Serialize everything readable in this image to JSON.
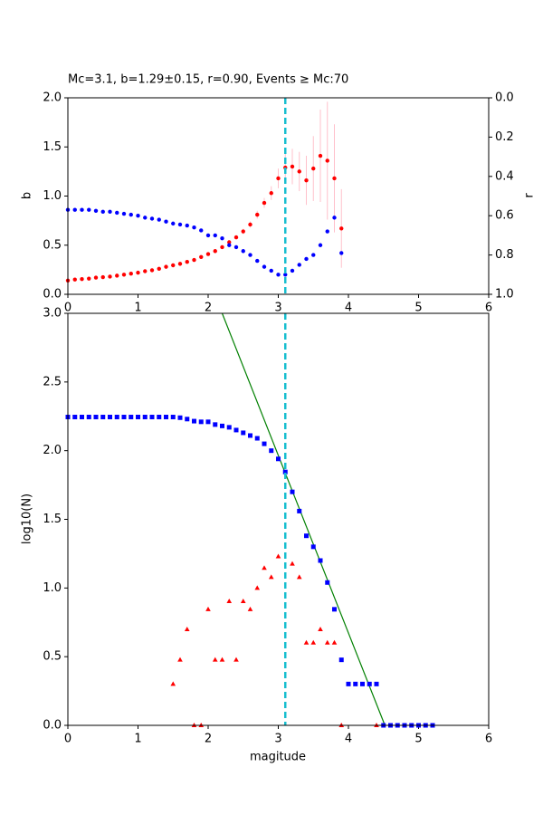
{
  "chart_data": [
    {
      "type": "scatter",
      "title": "Mc=3.1, b=1.29±0.15, r=0.90, Events ≥ Mc:70",
      "ylabel": "b",
      "y2label": "r",
      "xlim": [
        0,
        6
      ],
      "xticks": [
        0,
        1,
        2,
        3,
        4,
        5,
        6
      ],
      "ylim": [
        0,
        2
      ],
      "yticks": [
        {
          "value": 0,
          "label": "0.0"
        },
        0.5,
        {
          "value": 1,
          "label": "1.0"
        },
        1.5,
        {
          "value": 2,
          "label": "2.0"
        }
      ],
      "y2lim": [
        1,
        0
      ],
      "y2ticks": [
        {
          "value": 0,
          "label": "0.0"
        },
        0.2,
        0.4,
        0.6,
        0.8,
        {
          "value": 1,
          "label": "1.0"
        }
      ],
      "vline": {
        "x": 3.1,
        "color": "#17becf"
      },
      "x": [
        0.0,
        0.1,
        0.2,
        0.3,
        0.4,
        0.5,
        0.6,
        0.7,
        0.8,
        0.9,
        1.0,
        1.1,
        1.2,
        1.3,
        1.4,
        1.5,
        1.6,
        1.7,
        1.8,
        1.9,
        2.0,
        2.1,
        2.2,
        2.3,
        2.4,
        2.5,
        2.6,
        2.7,
        2.8,
        2.9,
        3.0,
        3.1,
        3.2,
        3.3,
        3.4,
        3.5,
        3.6,
        3.7,
        3.8,
        3.9
      ],
      "series": [
        {
          "color": "#ff0000",
          "marker": "circle",
          "error_color": "#ffc0cb",
          "values": [
            0.14,
            0.15,
            0.155,
            0.16,
            0.17,
            0.175,
            0.18,
            0.19,
            0.2,
            0.21,
            0.22,
            0.235,
            0.245,
            0.26,
            0.28,
            0.295,
            0.31,
            0.33,
            0.35,
            0.38,
            0.41,
            0.44,
            0.48,
            0.53,
            0.58,
            0.64,
            0.71,
            0.81,
            0.93,
            1.03,
            1.18,
            1.29,
            1.3,
            1.25,
            1.16,
            1.28,
            1.41,
            1.36,
            1.18,
            0.67
          ],
          "errors": [
            0.005,
            0.005,
            0.005,
            0.005,
            0.005,
            0.005,
            0.005,
            0.005,
            0.006,
            0.006,
            0.007,
            0.007,
            0.008,
            0.008,
            0.009,
            0.01,
            0.01,
            0.011,
            0.012,
            0.013,
            0.014,
            0.016,
            0.018,
            0.02,
            0.023,
            0.027,
            0.032,
            0.04,
            0.05,
            0.07,
            0.1,
            0.15,
            0.18,
            0.2,
            0.25,
            0.33,
            0.47,
            0.6,
            0.55,
            0.4
          ]
        },
        {
          "color": "#0000ff",
          "marker": "circle",
          "axis": "y2",
          "values": [
            0.57,
            0.57,
            0.57,
            0.57,
            0.575,
            0.58,
            0.58,
            0.585,
            0.59,
            0.595,
            0.6,
            0.61,
            0.615,
            0.62,
            0.63,
            0.64,
            0.645,
            0.65,
            0.66,
            0.675,
            0.7,
            0.7,
            0.715,
            0.75,
            0.76,
            0.78,
            0.8,
            0.83,
            0.86,
            0.88,
            0.9,
            0.9,
            0.88,
            0.85,
            0.82,
            0.8,
            0.75,
            0.68,
            0.61,
            0.79
          ]
        }
      ]
    },
    {
      "type": "scatter",
      "xlabel": "magitude",
      "ylabel": "log10(N)",
      "xlim": [
        0,
        6
      ],
      "xticks": [
        0,
        1,
        2,
        3,
        4,
        5,
        6
      ],
      "ylim": [
        0,
        3
      ],
      "yticks": [
        {
          "value": 0,
          "label": "0.0"
        },
        0.5,
        {
          "value": 1,
          "label": "1.0"
        },
        1.5,
        {
          "value": 2,
          "label": "2.0"
        },
        2.5,
        {
          "value": 3,
          "label": "3.0"
        }
      ],
      "vline": {
        "x": 3.1,
        "color": "#17becf"
      },
      "series": [
        {
          "color": "#0000ff",
          "marker": "square",
          "x": [
            0.0,
            0.1,
            0.2,
            0.3,
            0.4,
            0.5,
            0.6,
            0.7,
            0.8,
            0.9,
            1.0,
            1.1,
            1.2,
            1.3,
            1.4,
            1.5,
            1.6,
            1.7,
            1.8,
            1.9,
            2.0,
            2.1,
            2.2,
            2.3,
            2.4,
            2.5,
            2.6,
            2.7,
            2.8,
            2.9,
            3.0,
            3.1,
            3.2,
            3.3,
            3.4,
            3.5,
            3.6,
            3.7,
            3.8,
            3.9,
            4.0,
            4.1,
            4.2,
            4.3,
            4.4,
            4.5,
            4.6,
            4.7,
            4.8,
            4.9,
            5.0,
            5.1,
            5.2
          ],
          "values": [
            2.245,
            2.245,
            2.245,
            2.245,
            2.245,
            2.245,
            2.245,
            2.245,
            2.245,
            2.245,
            2.245,
            2.245,
            2.245,
            2.245,
            2.245,
            2.245,
            2.24,
            2.23,
            2.215,
            2.21,
            2.21,
            2.19,
            2.18,
            2.17,
            2.15,
            2.13,
            2.11,
            2.09,
            2.05,
            2.0,
            1.94,
            1.845,
            1.7,
            1.56,
            1.38,
            1.3,
            1.2,
            1.04,
            0.845,
            0.477,
            0.301,
            0.301,
            0.301,
            0.301,
            0.301,
            0,
            0,
            0,
            0,
            0,
            0,
            0,
            0
          ]
        },
        {
          "color": "#ff0000",
          "marker": "triangle",
          "x": [
            1.5,
            1.6,
            1.7,
            1.8,
            1.9,
            2.0,
            2.1,
            2.2,
            2.3,
            2.4,
            2.5,
            2.6,
            2.7,
            2.8,
            2.9,
            3.0,
            3.2,
            3.3,
            3.4,
            3.5,
            3.6,
            3.7,
            3.8,
            3.9,
            4.4
          ],
          "values": [
            0.301,
            0.477,
            0.699,
            0,
            0,
            0.845,
            0.477,
            0.477,
            0.903,
            0.477,
            0.903,
            0.845,
            1.0,
            1.146,
            1.079,
            1.23,
            1.176,
            1.079,
            0.602,
            0.602,
            0.699,
            0.602,
            0.602,
            0,
            0
          ]
        },
        {
          "color": "#008000",
          "marker": "line",
          "x": [
            2.2,
            4.52
          ],
          "values": [
            3.0,
            0.0
          ]
        }
      ]
    }
  ]
}
